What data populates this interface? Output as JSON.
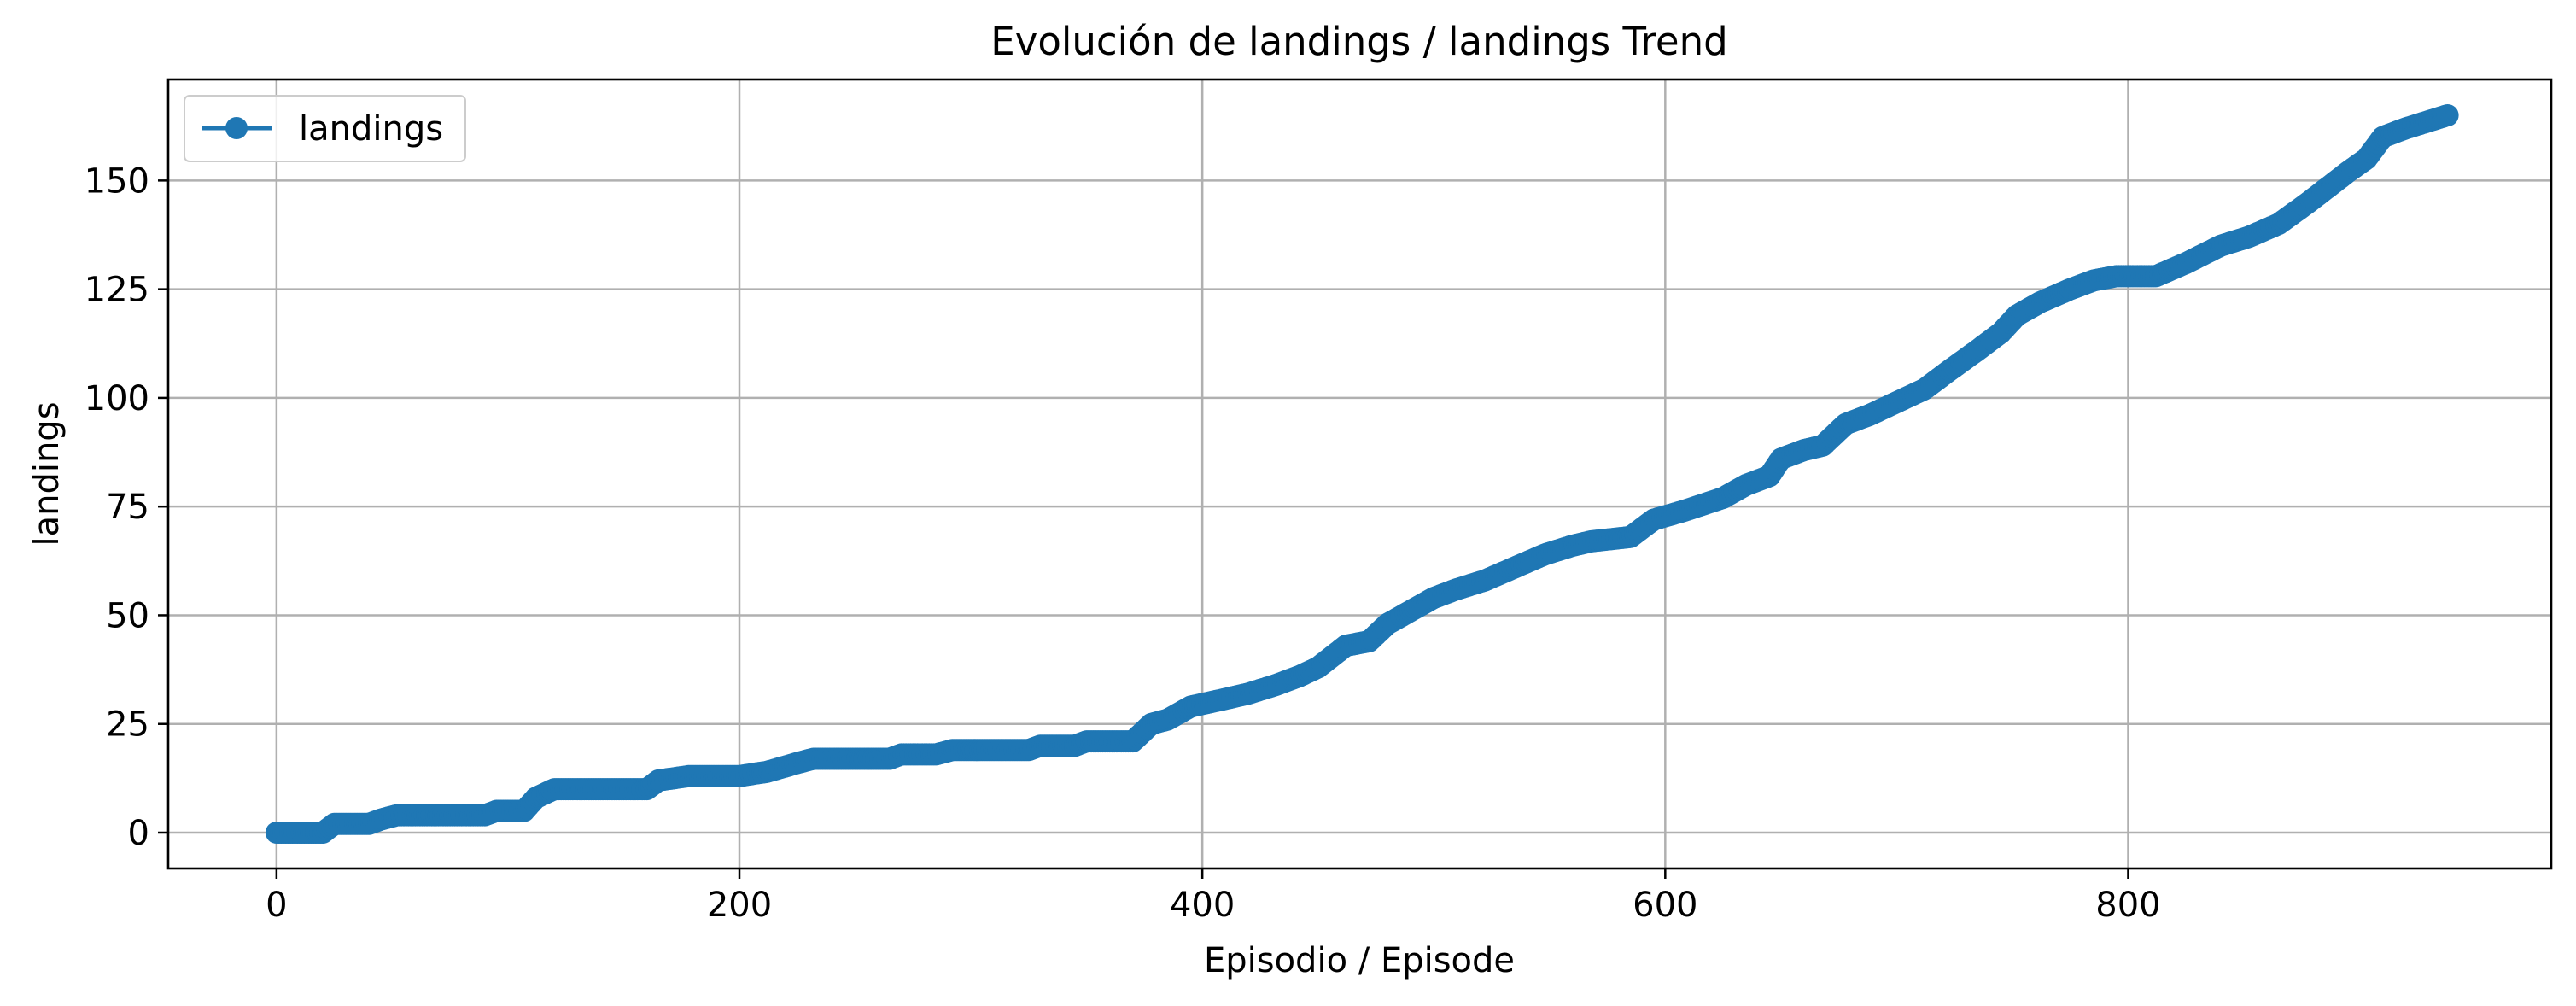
{
  "chart_data": {
    "type": "line",
    "title": "Evolución de landings / landings Trend",
    "xlabel": "Episodio / Episode",
    "ylabel": "landings",
    "xlim": [
      -46.8,
      982.8
    ],
    "ylim": [
      -8.25,
      173.25
    ],
    "xticks": [
      0,
      200,
      400,
      600,
      800
    ],
    "yticks": [
      0,
      25,
      50,
      75,
      100,
      125,
      150
    ],
    "grid": true,
    "legend_position": "top-left",
    "series": [
      {
        "name": "landings",
        "color": "#1f77b4",
        "marker": "circle",
        "points": [
          [
            0,
            0
          ],
          [
            20,
            0
          ],
          [
            25,
            2
          ],
          [
            40,
            2
          ],
          [
            45,
            3
          ],
          [
            52,
            4
          ],
          [
            90,
            4
          ],
          [
            95,
            5
          ],
          [
            107,
            5
          ],
          [
            112,
            8
          ],
          [
            120,
            10
          ],
          [
            160,
            10
          ],
          [
            165,
            12
          ],
          [
            178,
            13
          ],
          [
            200,
            13
          ],
          [
            212,
            14
          ],
          [
            225,
            16
          ],
          [
            232,
            17
          ],
          [
            265,
            17
          ],
          [
            270,
            18
          ],
          [
            285,
            18
          ],
          [
            292,
            19
          ],
          [
            325,
            19
          ],
          [
            330,
            20
          ],
          [
            345,
            20
          ],
          [
            350,
            21
          ],
          [
            370,
            21
          ],
          [
            378,
            25
          ],
          [
            385,
            26
          ],
          [
            395,
            29
          ],
          [
            412,
            31
          ],
          [
            420,
            32
          ],
          [
            432,
            34
          ],
          [
            442,
            36
          ],
          [
            450,
            38
          ],
          [
            462,
            43
          ],
          [
            472,
            44
          ],
          [
            480,
            48
          ],
          [
            490,
            51
          ],
          [
            500,
            54
          ],
          [
            510,
            56
          ],
          [
            522,
            58
          ],
          [
            535,
            61
          ],
          [
            548,
            64
          ],
          [
            560,
            66
          ],
          [
            568,
            67
          ],
          [
            585,
            68
          ],
          [
            595,
            72
          ],
          [
            608,
            74
          ],
          [
            625,
            77
          ],
          [
            635,
            80
          ],
          [
            645,
            82
          ],
          [
            650,
            86
          ],
          [
            660,
            88
          ],
          [
            668,
            89
          ],
          [
            678,
            94
          ],
          [
            688,
            96
          ],
          [
            700,
            99
          ],
          [
            712,
            102
          ],
          [
            722,
            106
          ],
          [
            735,
            111
          ],
          [
            745,
            115
          ],
          [
            752,
            119
          ],
          [
            762,
            122
          ],
          [
            775,
            125
          ],
          [
            785,
            127
          ],
          [
            795,
            128
          ],
          [
            812,
            128
          ],
          [
            825,
            131
          ],
          [
            840,
            135
          ],
          [
            852,
            137
          ],
          [
            865,
            140
          ],
          [
            878,
            145
          ],
          [
            895,
            152
          ],
          [
            903,
            155
          ],
          [
            910,
            160
          ],
          [
            920,
            162
          ],
          [
            932,
            164
          ],
          [
            938,
            165
          ]
        ]
      }
    ]
  }
}
